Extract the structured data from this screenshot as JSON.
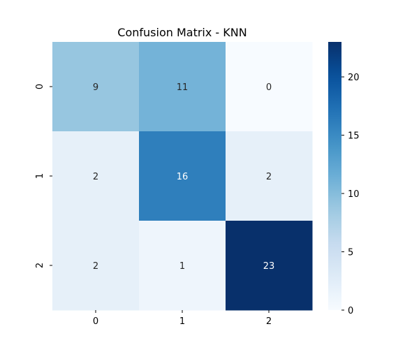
{
  "chart_data": {
    "type": "heatmap",
    "title": "Confusion Matrix - KNN",
    "xlabel": "",
    "ylabel": "",
    "x_categories": [
      "0",
      "1",
      "2"
    ],
    "y_categories": [
      "0",
      "1",
      "2"
    ],
    "values": [
      [
        9,
        11,
        0
      ],
      [
        2,
        16,
        2
      ],
      [
        2,
        1,
        23
      ]
    ],
    "colormap": "Blues",
    "colorbar": {
      "vmin": 0,
      "vmax": 23,
      "ticks": [
        0,
        5,
        10,
        15,
        20
      ],
      "tick_labels": [
        "0",
        "5",
        "10",
        "15",
        "20"
      ]
    },
    "annotations": true,
    "grid": false
  }
}
